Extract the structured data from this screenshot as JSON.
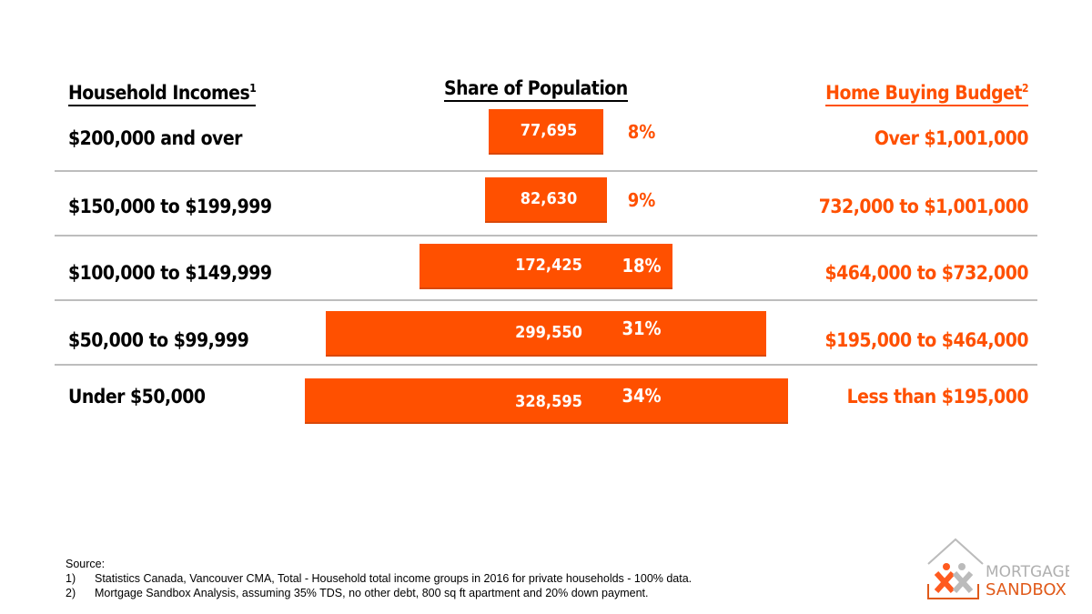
{
  "headers": {
    "income": "Household Incomes",
    "income_sup": "1",
    "share": "Share of Population",
    "budget": "Home Buying Budget",
    "budget_sup": "2"
  },
  "chart_data": {
    "type": "bar",
    "orientation": "horizontal-centered",
    "categories": [
      "$200,000 and over",
      "$150,000 to $199,999",
      "$100,000 to $149,999",
      "$50,000 to $99,999",
      "Under $50,000"
    ],
    "values": [
      77695,
      82630,
      172425,
      299550,
      328595
    ],
    "value_labels": [
      "77,695",
      "82,630",
      "172,425",
      "299,550",
      "328,595"
    ],
    "percent_labels": [
      "8%",
      "9%",
      "18%",
      "31%",
      "34%"
    ],
    "budgets": [
      "Over $1,001,000",
      "732,000 to $1,001,000",
      "$464,000 to $732,000",
      "$195,000 to $464,000",
      "Less than $195,000"
    ],
    "bar_color": "#ff5000"
  },
  "source": {
    "title": "Source:",
    "notes": [
      {
        "num": "1)",
        "text": "Statistics Canada, Vancouver CMA, Total - Household total income groups in 2016 for private households - 100% data."
      },
      {
        "num": "2)",
        "text": "Mortgage Sandbox Analysis, assuming 35% TDS, no other debt, 800 sq ft apartment and 20% down payment."
      }
    ]
  },
  "logo": {
    "line1": "MORTGAGE",
    "line2": "SANDBOX"
  }
}
